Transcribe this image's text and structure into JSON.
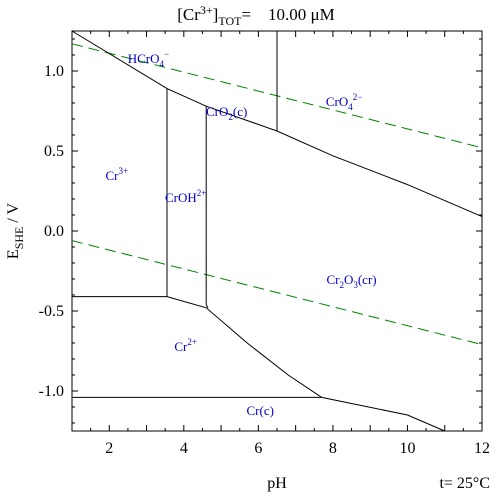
{
  "chart_data": {
    "type": "line",
    "title_parts": {
      "base": "[Cr",
      "sup": "3+",
      "close": "]",
      "sub": "TOT",
      "rest": "=    10.00 μM"
    },
    "xlabel": "pH",
    "ylabel_parts": {
      "base": "E",
      "sub": "SHE",
      "rest": " / V"
    },
    "footer": "t= 25°C",
    "xlim": [
      1,
      12
    ],
    "ylim": [
      -1.25,
      1.25
    ],
    "xticks": [
      2,
      4,
      6,
      8,
      10,
      12
    ],
    "xtick_labels": [
      "2",
      "4",
      "6",
      "8",
      "10",
      "12"
    ],
    "yticks": [
      1.0,
      0.5,
      0.0,
      -0.5,
      -1.0
    ],
    "ytick_labels": [
      "1.0",
      "0.5",
      "0.0",
      "-0.5",
      "-1.0"
    ],
    "boundaries": [
      {
        "name": "upper",
        "points": [
          [
            1,
            1.25
          ],
          [
            3.55,
            0.89
          ],
          [
            4.6,
            0.78
          ],
          [
            6.5,
            0.625
          ],
          [
            8,
            0.47
          ],
          [
            10,
            0.29
          ],
          [
            12,
            0.09
          ]
        ]
      },
      {
        "name": "lower",
        "points": [
          [
            3.55,
            -0.41
          ],
          [
            4.6,
            -0.48
          ],
          [
            5.7,
            -0.7
          ],
          [
            6.8,
            -0.9
          ],
          [
            7.7,
            -1.04
          ],
          [
            10,
            -1.15
          ],
          [
            11,
            -1.25
          ]
        ]
      },
      {
        "name": "cr3-croh2",
        "points": [
          [
            3.55,
            0.89
          ],
          [
            3.55,
            -0.41
          ]
        ]
      },
      {
        "name": "croh2-cro2",
        "points": [
          [
            4.6,
            0.78
          ],
          [
            4.6,
            -0.46
          ],
          [
            4.65,
            -0.48
          ]
        ]
      },
      {
        "name": "hcro4-cro4",
        "points": [
          [
            6.5,
            1.25
          ],
          [
            6.5,
            0.625
          ]
        ]
      },
      {
        "name": "cr3-cr2",
        "points": [
          [
            1,
            -0.41
          ],
          [
            3.55,
            -0.41
          ]
        ]
      },
      {
        "name": "cr2-cr",
        "points": [
          [
            1,
            -1.04
          ],
          [
            7.7,
            -1.04
          ]
        ]
      }
    ],
    "water_lines": [
      {
        "name": "O2/H2O",
        "points": [
          [
            1,
            1.17
          ],
          [
            12,
            0.52
          ]
        ]
      },
      {
        "name": "H2O/H2",
        "points": [
          [
            1,
            -0.06
          ],
          [
            12,
            -0.71
          ]
        ]
      }
    ],
    "species_labels": [
      {
        "base": "HCrO",
        "sub": "4",
        "sup": "−",
        "x": 3.05,
        "y": 1.05
      },
      {
        "base": "CrO",
        "sub": "4",
        "sup": "2−",
        "x": 8.3,
        "y": 0.78
      },
      {
        "base": "CrO",
        "sub": "2",
        "tail": "(c)",
        "x": 5.15,
        "y": 0.72
      },
      {
        "base": "Cr",
        "sup": "3+",
        "x": 2.2,
        "y": 0.32
      },
      {
        "base": "CrOH",
        "sup": "2+",
        "x": 4.05,
        "y": 0.18
      },
      {
        "base": "Cr",
        "sub": "2",
        "mid": "O",
        "sub2": "3",
        "tail": "(cr)",
        "x": 8.5,
        "y": -0.33
      },
      {
        "base": "Cr",
        "sup": "2+",
        "x": 4.05,
        "y": -0.75
      },
      {
        "base": "Cr(c)",
        "x": 6.05,
        "y": -1.15
      }
    ],
    "colors": {
      "boundary": "#000000",
      "water_line": "#008000",
      "species_label": "#0000cc"
    },
    "grid": false
  }
}
